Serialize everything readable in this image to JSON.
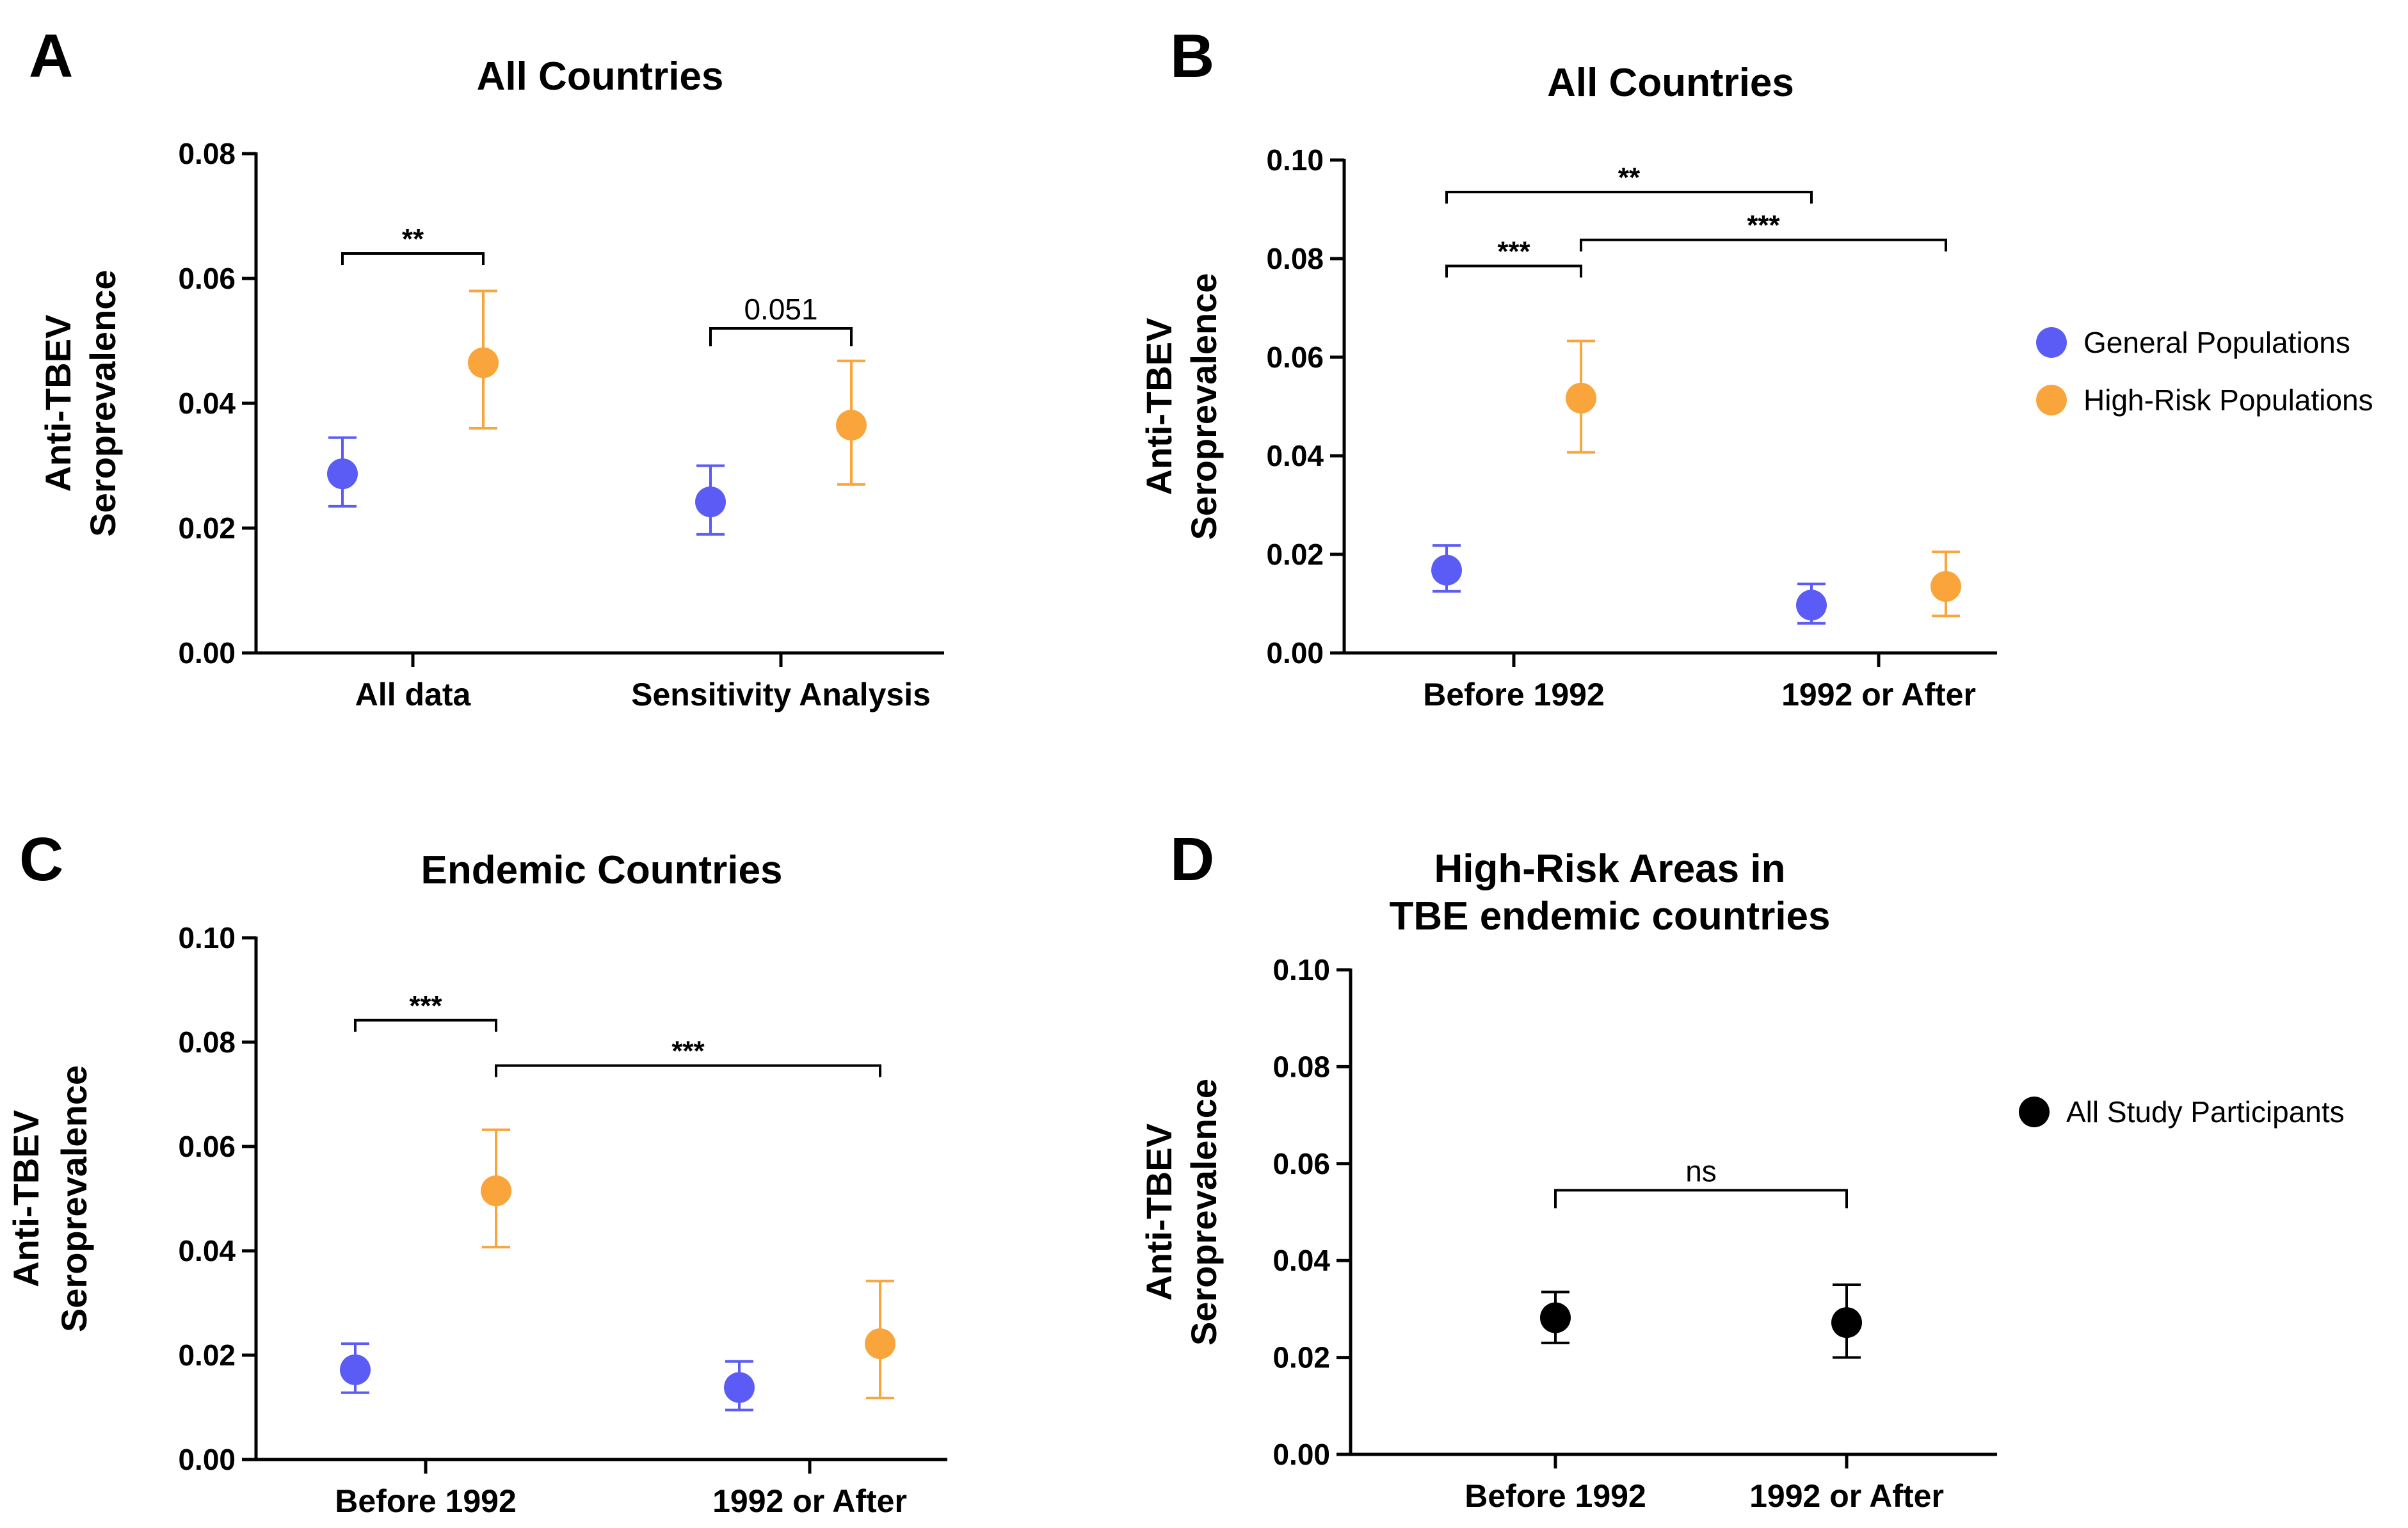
{
  "colors": {
    "general": "#5b5bf5",
    "highrisk": "#f9a53b",
    "all": "#000000",
    "axis": "#000000"
  },
  "chart_data": [
    {
      "panel": "A",
      "type": "scatter",
      "title_lines": [
        "All Countries"
      ],
      "ylabel_lines": [
        "Anti-TBEV",
        "Seroprevalence"
      ],
      "xlabel": "",
      "ylim": [
        0,
        0.08
      ],
      "yticks": [
        "0.00",
        "0.02",
        "0.04",
        "0.06",
        "0.08"
      ],
      "categories": [
        "All data",
        "Sensitivity Analysis"
      ],
      "series": [
        {
          "name": "General Populations",
          "color_key": "general",
          "points": [
            {
              "cat": 0,
              "y": 0.0287,
              "lo": 0.0235,
              "hi": 0.0345
            },
            {
              "cat": 1,
              "y": 0.0242,
              "lo": 0.019,
              "hi": 0.03
            }
          ]
        },
        {
          "name": "High-Risk Populations",
          "color_key": "highrisk",
          "points": [
            {
              "cat": 0,
              "y": 0.0465,
              "lo": 0.036,
              "hi": 0.058
            },
            {
              "cat": 1,
              "y": 0.0365,
              "lo": 0.027,
              "hi": 0.0468
            }
          ]
        }
      ],
      "annotations": [
        {
          "text": "**",
          "star": true,
          "level": 0.064,
          "from": [
            0,
            "General Populations"
          ],
          "to": [
            0,
            "High-Risk Populations"
          ]
        },
        {
          "text": "0.051",
          "star": false,
          "level": 0.052,
          "from": [
            1,
            "General Populations"
          ],
          "to": [
            1,
            "High-Risk Populations"
          ]
        }
      ],
      "legend": []
    },
    {
      "panel": "B",
      "type": "scatter",
      "title_lines": [
        "All Countries"
      ],
      "ylabel_lines": [
        "Anti-TBEV",
        "Seroprevalence"
      ],
      "xlabel": "",
      "ylim": [
        0,
        0.1
      ],
      "yticks": [
        "0.00",
        "0.02",
        "0.04",
        "0.06",
        "0.08",
        "0.10"
      ],
      "categories": [
        "Before 1992",
        "1992 or After"
      ],
      "series": [
        {
          "name": "General Populations",
          "color_key": "general",
          "points": [
            {
              "cat": 0,
              "y": 0.0168,
              "lo": 0.0125,
              "hi": 0.0218
            },
            {
              "cat": 1,
              "y": 0.0097,
              "lo": 0.006,
              "hi": 0.014
            }
          ]
        },
        {
          "name": "High-Risk Populations",
          "color_key": "highrisk",
          "points": [
            {
              "cat": 0,
              "y": 0.0517,
              "lo": 0.0407,
              "hi": 0.0633
            },
            {
              "cat": 1,
              "y": 0.0135,
              "lo": 0.0075,
              "hi": 0.0205
            }
          ]
        }
      ],
      "annotations": [
        {
          "text": "**",
          "star": true,
          "level": 0.0935,
          "from": [
            0,
            "General Populations"
          ],
          "to": [
            1,
            "General Populations"
          ]
        },
        {
          "text": "***",
          "star": true,
          "level": 0.0785,
          "from": [
            0,
            "General Populations"
          ],
          "to": [
            0,
            "High-Risk Populations"
          ]
        },
        {
          "text": "***",
          "star": true,
          "level": 0.0838,
          "from": [
            0,
            "High-Risk Populations"
          ],
          "to": [
            1,
            "High-Risk Populations"
          ]
        }
      ],
      "legend": [
        "General Populations",
        "High-Risk Populations"
      ]
    },
    {
      "panel": "C",
      "type": "scatter",
      "title_lines": [
        "Endemic Countries"
      ],
      "ylabel_lines": [
        "Anti-TBEV",
        "Seroprevalence"
      ],
      "xlabel": "",
      "ylim": [
        0,
        0.1
      ],
      "yticks": [
        "0.00",
        "0.02",
        "0.04",
        "0.06",
        "0.08",
        "0.10"
      ],
      "categories": [
        "Before 1992",
        "1992 or After"
      ],
      "series": [
        {
          "name": "General Populations",
          "color_key": "general",
          "points": [
            {
              "cat": 0,
              "y": 0.0172,
              "lo": 0.0128,
              "hi": 0.0222
            },
            {
              "cat": 1,
              "y": 0.0138,
              "lo": 0.0095,
              "hi": 0.0188
            }
          ]
        },
        {
          "name": "High-Risk Populations",
          "color_key": "highrisk",
          "points": [
            {
              "cat": 0,
              "y": 0.0515,
              "lo": 0.0407,
              "hi": 0.0632
            },
            {
              "cat": 1,
              "y": 0.0222,
              "lo": 0.0118,
              "hi": 0.0342
            }
          ]
        }
      ],
      "annotations": [
        {
          "text": "***",
          "star": true,
          "level": 0.0842,
          "from": [
            0,
            "General Populations"
          ],
          "to": [
            0,
            "High-Risk Populations"
          ]
        },
        {
          "text": "***",
          "star": true,
          "level": 0.0755,
          "from": [
            0,
            "High-Risk Populations"
          ],
          "to": [
            1,
            "High-Risk Populations"
          ]
        }
      ],
      "legend": []
    },
    {
      "panel": "D",
      "type": "scatter",
      "title_lines": [
        "High-Risk Areas in",
        "TBE endemic countries"
      ],
      "ylabel_lines": [
        "Anti-TBEV",
        "Seroprevalence"
      ],
      "xlabel": "",
      "ylim": [
        0,
        0.1
      ],
      "yticks": [
        "0.00",
        "0.02",
        "0.04",
        "0.06",
        "0.08",
        "0.10"
      ],
      "categories": [
        "Before 1992",
        "1992 or After"
      ],
      "series": [
        {
          "name": "All Study Participants",
          "color_key": "all",
          "points": [
            {
              "cat": 0,
              "y": 0.0282,
              "lo": 0.023,
              "hi": 0.0335
            },
            {
              "cat": 1,
              "y": 0.0272,
              "lo": 0.02,
              "hi": 0.035
            }
          ]
        }
      ],
      "annotations": [
        {
          "text": "ns",
          "star": false,
          "level": 0.0545,
          "from": [
            0,
            "All Study Participants"
          ],
          "to": [
            1,
            "All Study Participants"
          ]
        }
      ],
      "legend": [
        "All Study Participants"
      ]
    }
  ]
}
